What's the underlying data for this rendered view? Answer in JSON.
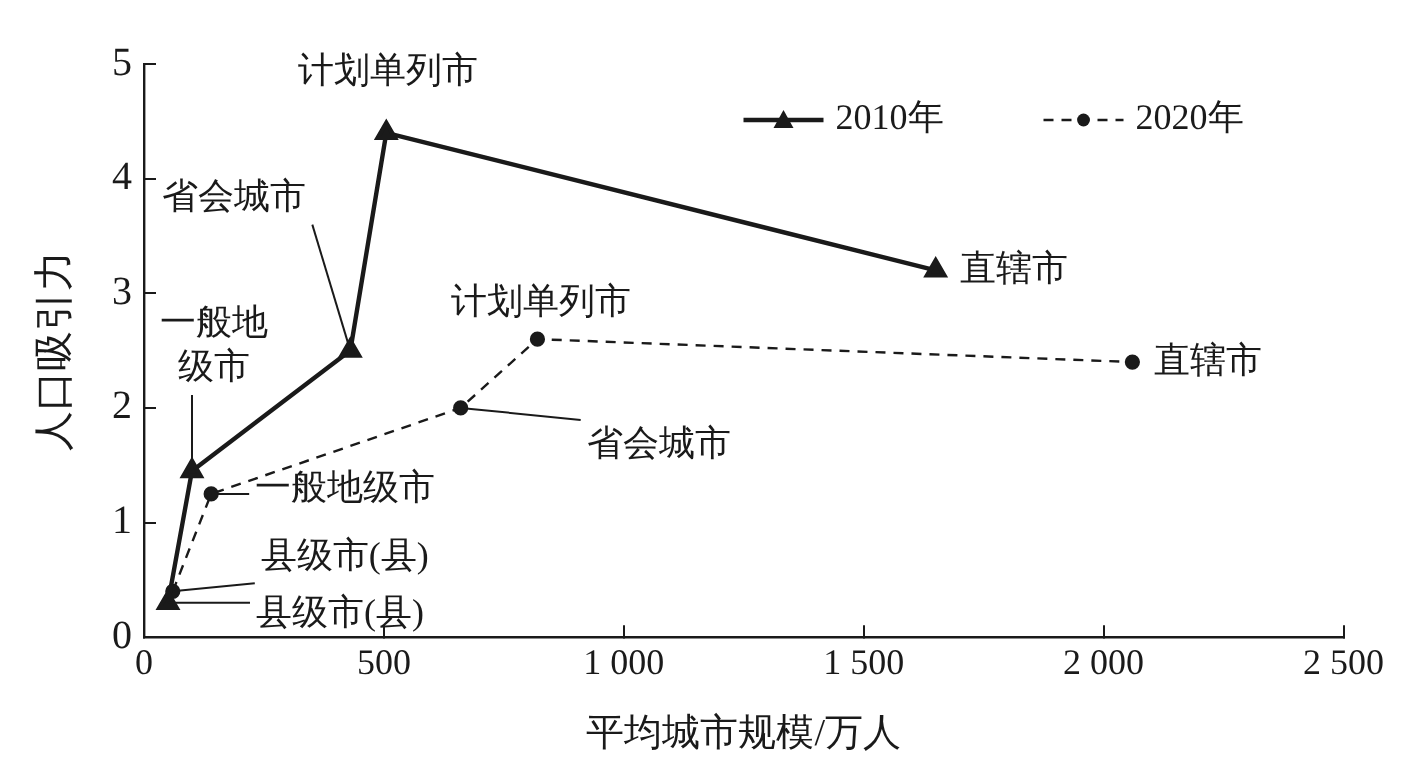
{
  "chart_data": {
    "type": "line",
    "xlabel": "平均城市规模/万人",
    "ylabel": "人口吸引力",
    "xlim": [
      0,
      2500
    ],
    "xticks": [
      0,
      500,
      {
        "value": 1000,
        "label": "1 000"
      },
      {
        "value": 1500,
        "label": "1 500"
      },
      {
        "value": 2000,
        "label": "2 000"
      },
      {
        "value": 2500,
        "label": "2 500"
      }
    ],
    "ylim": [
      0,
      5
    ],
    "yticks": [
      0,
      1,
      2,
      3,
      4,
      5
    ],
    "legend": "top right",
    "grid": false,
    "series": [
      {
        "name": "2010年",
        "color": "#1a1a1a",
        "marker": "triangle",
        "line_style": "solid",
        "x": [
          50,
          100,
          430,
          505,
          1650
        ],
        "values": [
          0.3,
          1.45,
          2.5,
          4.4,
          3.2
        ]
      },
      {
        "name": "2020年",
        "color": "#1a1a1a",
        "marker": "circle",
        "line_style": "dashed",
        "x": [
          60,
          140,
          660,
          820,
          2060
        ],
        "values": [
          0.4,
          1.25,
          2.0,
          2.6,
          2.4
        ]
      }
    ],
    "annotations": [
      {
        "text": "县级市(县)",
        "x": 50,
        "y": 0.3
      },
      {
        "text": "一般地级市",
        "x": 100,
        "y": 1.45
      },
      {
        "text": "省会城市",
        "x": 430,
        "y": 2.5
      },
      {
        "text": "计划单列市",
        "x": 505,
        "y": 4.4
      },
      {
        "text": "直辖市",
        "x": 1650,
        "y": 3.2
      },
      {
        "text": "县级市(县)",
        "x": 60,
        "y": 0.4
      },
      {
        "text": "一般地级市",
        "x": 140,
        "y": 1.25
      },
      {
        "text": "省会城市",
        "x": 660,
        "y": 2.0
      },
      {
        "text": "计划单列市",
        "x": 820,
        "y": 2.6
      },
      {
        "text": "直辖市",
        "x": 2060,
        "y": 2.4
      }
    ]
  }
}
